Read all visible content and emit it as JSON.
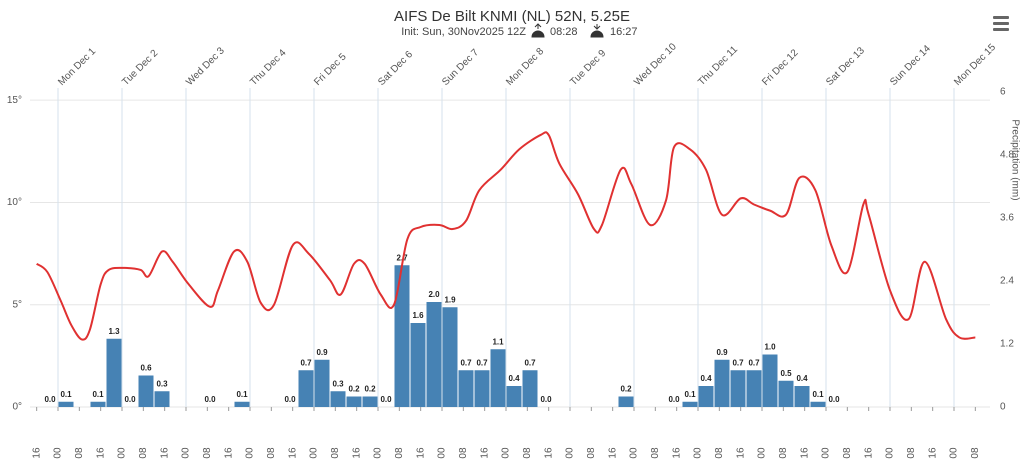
{
  "chart_data": {
    "type": "combo",
    "title": "AIFS De Bilt KNMI (NL) 52N, 5.25E",
    "subtitle": "Init: Sun, 30Nov2025 12Z",
    "sunrise": "08:28",
    "sunset": "16:27",
    "y2label": "Precipitation (mm)",
    "xlim": [
      "2025-11-30T13:30",
      "2025-12-15T13:30"
    ],
    "ylim": [
      0,
      15.4
    ],
    "yticks": [
      {
        "value": 0,
        "label": "0°"
      },
      {
        "value": 5,
        "label": "5°"
      },
      {
        "value": 10,
        "label": "10°"
      },
      {
        "value": 15,
        "label": "15°"
      }
    ],
    "y2lim": [
      0,
      6
    ],
    "y2ticks": [
      0,
      1.2,
      2.4,
      3.6,
      4.8,
      6
    ],
    "grid": true,
    "xticks_top": [
      {
        "value": "2025-12-01T00:00",
        "label": "Mon Dec 1"
      },
      {
        "value": "2025-12-02T00:00",
        "label": "Tue Dec 2"
      },
      {
        "value": "2025-12-03T00:00",
        "label": "Wed Dec 3"
      },
      {
        "value": "2025-12-04T00:00",
        "label": "Thu Dec 4"
      },
      {
        "value": "2025-12-05T00:00",
        "label": "Fri Dec 5"
      },
      {
        "value": "2025-12-06T00:00",
        "label": "Sat Dec 6"
      },
      {
        "value": "2025-12-07T00:00",
        "label": "Sun Dec 7"
      },
      {
        "value": "2025-12-08T00:00",
        "label": "Mon Dec 8"
      },
      {
        "value": "2025-12-09T00:00",
        "label": "Tue Dec 9"
      },
      {
        "value": "2025-12-10T00:00",
        "label": "Wed Dec 10"
      },
      {
        "value": "2025-12-11T00:00",
        "label": "Thu Dec 11"
      },
      {
        "value": "2025-12-12T00:00",
        "label": "Fri Dec 12"
      },
      {
        "value": "2025-12-13T00:00",
        "label": "Sat Dec 13"
      },
      {
        "value": "2025-12-14T00:00",
        "label": "Sun Dec 14"
      },
      {
        "value": "2025-12-15T00:00",
        "label": "Mon Dec 15"
      }
    ],
    "xticks": [
      {
        "value": "2025-11-30T16:00",
        "label": "16"
      },
      {
        "value": "2025-12-01T00:00",
        "label": "00"
      },
      {
        "value": "2025-12-01T08:00",
        "label": "08"
      },
      {
        "value": "2025-12-01T16:00",
        "label": "16"
      },
      {
        "value": "2025-12-02T00:00",
        "label": "00"
      },
      {
        "value": "2025-12-02T08:00",
        "label": "08"
      },
      {
        "value": "2025-12-02T16:00",
        "label": "16"
      },
      {
        "value": "2025-12-03T00:00",
        "label": "00"
      },
      {
        "value": "2025-12-03T08:00",
        "label": "08"
      },
      {
        "value": "2025-12-03T16:00",
        "label": "16"
      },
      {
        "value": "2025-12-04T00:00",
        "label": "00"
      },
      {
        "value": "2025-12-04T08:00",
        "label": "08"
      },
      {
        "value": "2025-12-04T16:00",
        "label": "16"
      },
      {
        "value": "2025-12-05T00:00",
        "label": "00"
      },
      {
        "value": "2025-12-05T08:00",
        "label": "08"
      },
      {
        "value": "2025-12-05T16:00",
        "label": "16"
      },
      {
        "value": "2025-12-06T00:00",
        "label": "00"
      },
      {
        "value": "2025-12-06T08:00",
        "label": "08"
      },
      {
        "value": "2025-12-06T16:00",
        "label": "16"
      },
      {
        "value": "2025-12-07T00:00",
        "label": "00"
      },
      {
        "value": "2025-12-07T08:00",
        "label": "08"
      },
      {
        "value": "2025-12-07T16:00",
        "label": "16"
      },
      {
        "value": "2025-12-08T00:00",
        "label": "00"
      },
      {
        "value": "2025-12-08T08:00",
        "label": "08"
      },
      {
        "value": "2025-12-08T16:00",
        "label": "16"
      },
      {
        "value": "2025-12-09T00:00",
        "label": "00"
      },
      {
        "value": "2025-12-09T08:00",
        "label": "08"
      },
      {
        "value": "2025-12-09T16:00",
        "label": "16"
      },
      {
        "value": "2025-12-10T00:00",
        "label": "00"
      },
      {
        "value": "2025-12-10T08:00",
        "label": "08"
      },
      {
        "value": "2025-12-10T16:00",
        "label": "16"
      },
      {
        "value": "2025-12-11T00:00",
        "label": "00"
      },
      {
        "value": "2025-12-11T08:00",
        "label": "08"
      },
      {
        "value": "2025-12-11T16:00",
        "label": "16"
      },
      {
        "value": "2025-12-12T00:00",
        "label": "00"
      },
      {
        "value": "2025-12-12T08:00",
        "label": "08"
      },
      {
        "value": "2025-12-12T16:00",
        "label": "16"
      },
      {
        "value": "2025-12-13T00:00",
        "label": "00"
      },
      {
        "value": "2025-12-13T08:00",
        "label": "08"
      },
      {
        "value": "2025-12-13T16:00",
        "label": "16"
      },
      {
        "value": "2025-12-14T00:00",
        "label": "00"
      },
      {
        "value": "2025-12-14T08:00",
        "label": "08"
      },
      {
        "value": "2025-12-14T16:00",
        "label": "16"
      },
      {
        "value": "2025-12-15T00:00",
        "label": "00"
      },
      {
        "value": "2025-12-15T08:00",
        "label": "08"
      }
    ],
    "series": [
      {
        "type": "bar",
        "axis": "y2",
        "color": "#4682b4",
        "x": [
          "2025-11-30T18:00",
          "2025-12-01T00:00",
          "2025-12-01T12:00",
          "2025-12-01T18:00",
          "2025-12-02T00:00",
          "2025-12-02T06:00",
          "2025-12-02T12:00",
          "2025-12-03T06:00",
          "2025-12-03T18:00",
          "2025-12-04T12:00",
          "2025-12-04T18:00",
          "2025-12-05T00:00",
          "2025-12-05T06:00",
          "2025-12-05T12:00",
          "2025-12-05T18:00",
          "2025-12-06T00:00",
          "2025-12-06T06:00",
          "2025-12-06T12:00",
          "2025-12-06T18:00",
          "2025-12-07T00:00",
          "2025-12-07T06:00",
          "2025-12-07T12:00",
          "2025-12-07T18:00",
          "2025-12-08T00:00",
          "2025-12-08T06:00",
          "2025-12-08T12:00",
          "2025-12-09T18:00",
          "2025-12-10T12:00",
          "2025-12-10T18:00",
          "2025-12-11T00:00",
          "2025-12-11T06:00",
          "2025-12-11T12:00",
          "2025-12-11T18:00",
          "2025-12-12T00:00",
          "2025-12-12T06:00",
          "2025-12-12T12:00",
          "2025-12-12T18:00",
          "2025-12-13T00:00"
        ],
        "values": [
          0,
          0.1,
          0.1,
          1.3,
          0,
          0.6,
          0.3,
          0,
          0.1,
          0,
          0.7,
          0.9,
          0.3,
          0.2,
          0.2,
          0,
          2.7,
          1.6,
          2.0,
          1.9,
          0.7,
          0.7,
          1.1,
          0.4,
          0.7,
          0,
          0.2,
          0,
          0.1,
          0.4,
          0.9,
          0.7,
          0.7,
          1.0,
          0.5,
          0.4,
          0.1,
          0
        ],
        "value_labels": [
          "0.0",
          "0.1",
          "0.1",
          "1.3",
          "0.0",
          "0.6",
          "0.3",
          "0.0",
          "0.1",
          "0.0",
          "0.7",
          "0.9",
          "0.3",
          "0.2",
          "0.2",
          "0.0",
          "2.7",
          "1.6",
          "2.0",
          "1.9",
          "0.7",
          "0.7",
          "1.1",
          "0.4",
          "0.7",
          "0.0",
          "0.2",
          "0.0",
          "0.1",
          "0.4",
          "0.9",
          "0.7",
          "0.7",
          "1.0",
          "0.5",
          "0.4",
          "0.1",
          "0.0"
        ]
      },
      {
        "type": "line",
        "color": "#e03131",
        "x": [
          "2025-11-30T16:00",
          "2025-11-30T20:00",
          "2025-12-01T01:00",
          "2025-12-01T05:00",
          "2025-12-01T09:00",
          "2025-12-01T12:00",
          "2025-12-01T16:00",
          "2025-12-01T19:00",
          "2025-12-02T01:00",
          "2025-12-02T07:00",
          "2025-12-02T10:00",
          "2025-12-02T15:00",
          "2025-12-02T19:00",
          "2025-12-03T01:00",
          "2025-12-03T09:00",
          "2025-12-03T12:00",
          "2025-12-03T18:00",
          "2025-12-03T23:00",
          "2025-12-04T04:00",
          "2025-12-04T09:00",
          "2025-12-04T16:00",
          "2025-12-04T22:00",
          "2025-12-05T06:00",
          "2025-12-05T10:00",
          "2025-12-05T15:00",
          "2025-12-05T19:00",
          "2025-12-06T01:00",
          "2025-12-06T06:00",
          "2025-12-06T11:00",
          "2025-12-06T16:00",
          "2025-12-06T23:00",
          "2025-12-07T04:00",
          "2025-12-07T09:00",
          "2025-12-07T14:00",
          "2025-12-07T22:00",
          "2025-12-08T05:00",
          "2025-12-08T13:00",
          "2025-12-08T16:00",
          "2025-12-08T20:00",
          "2025-12-09T03:00",
          "2025-12-09T09:00",
          "2025-12-09T12:00",
          "2025-12-09T19:00",
          "2025-12-09T23:00",
          "2025-12-10T06:00",
          "2025-12-10T12:00",
          "2025-12-10T15:00",
          "2025-12-10T21:00",
          "2025-12-11T03:00",
          "2025-12-11T09:00",
          "2025-12-11T16:00",
          "2025-12-11T21:00",
          "2025-12-12T03:00",
          "2025-12-12T09:00",
          "2025-12-12T14:00",
          "2025-12-12T20:00",
          "2025-12-13T02:00",
          "2025-12-13T08:00",
          "2025-12-13T14:00",
          "2025-12-13T16:00",
          "2025-12-14T00:00",
          "2025-12-14T07:00",
          "2025-12-14T13:00",
          "2025-12-14T21:00",
          "2025-12-15T02:00",
          "2025-12-15T08:00"
        ],
        "values": [
          7.0,
          6.6,
          5.2,
          4.0,
          3.3,
          3.8,
          6.0,
          6.7,
          6.8,
          6.7,
          6.4,
          7.6,
          7.1,
          6.0,
          4.9,
          5.7,
          7.6,
          7.1,
          5.1,
          5.0,
          7.9,
          7.5,
          6.2,
          5.5,
          7.0,
          7.0,
          5.5,
          5.0,
          8.2,
          8.8,
          8.9,
          8.7,
          9.1,
          10.6,
          11.6,
          12.6,
          13.3,
          13.3,
          11.9,
          10.4,
          8.7,
          8.9,
          11.6,
          10.9,
          8.9,
          10.1,
          12.7,
          12.6,
          11.6,
          9.4,
          10.2,
          9.9,
          9.6,
          9.4,
          11.2,
          10.6,
          7.9,
          6.6,
          9.9,
          9.4,
          5.7,
          4.3,
          7.1,
          4.3,
          3.4,
          3.4
        ]
      }
    ]
  }
}
